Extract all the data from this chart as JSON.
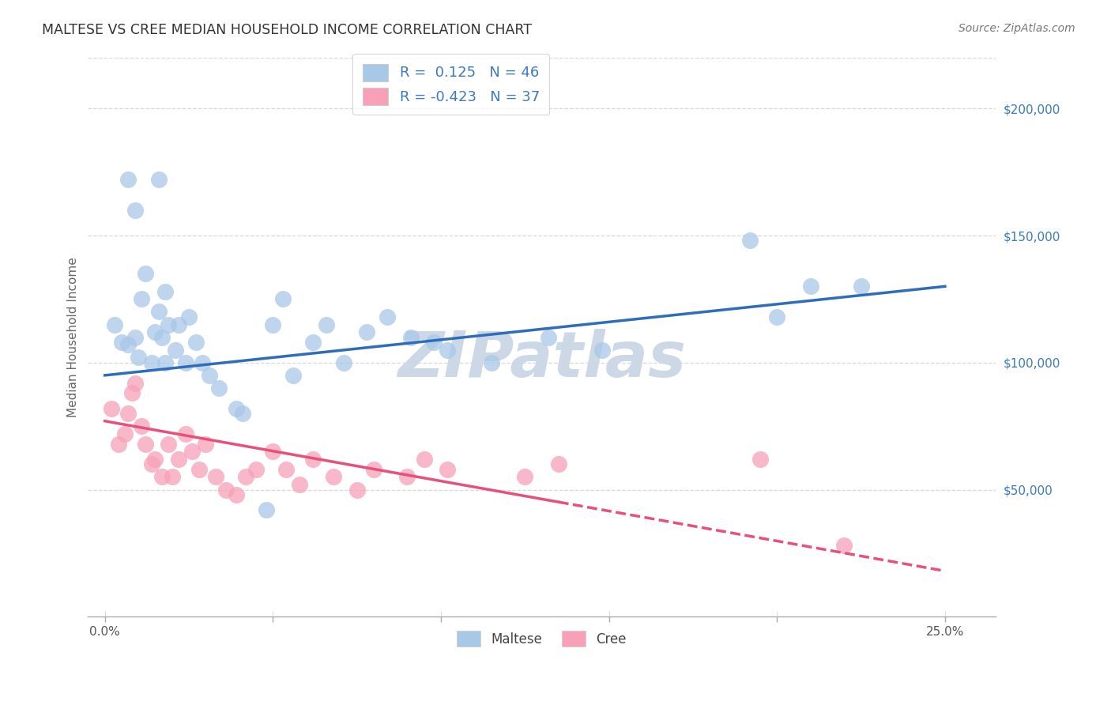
{
  "title": "MALTESE VS CREE MEDIAN HOUSEHOLD INCOME CORRELATION CHART",
  "source": "Source: ZipAtlas.com",
  "ylabel": "Median Household Income",
  "ytick_vals": [
    50000,
    100000,
    150000,
    200000
  ],
  "ytick_labels": [
    "$50,000",
    "$100,000",
    "$150,000",
    "$200,000"
  ],
  "xtick_vals": [
    0,
    5,
    10,
    15,
    20,
    25
  ],
  "xtick_labels": [
    "0.0%",
    "",
    "",
    "",
    "",
    "25.0%"
  ],
  "xlim": [
    -0.5,
    26.5
  ],
  "ylim": [
    0,
    220000
  ],
  "maltese_R": 0.125,
  "maltese_N": 46,
  "cree_R": -0.423,
  "cree_N": 37,
  "maltese_dot_color": "#a8c8e8",
  "maltese_line_color": "#2e6dba",
  "cree_dot_color": "#f8a0b8",
  "cree_line_color": "#e8507a",
  "background": "#ffffff",
  "grid_color": "#d8d8d8",
  "maltese_x": [
    0.7,
    1.6,
    0.9,
    1.8,
    0.3,
    0.5,
    0.7,
    0.9,
    1.0,
    1.1,
    1.2,
    1.4,
    1.5,
    1.6,
    1.7,
    1.8,
    1.9,
    2.1,
    2.2,
    2.4,
    2.5,
    2.7,
    2.9,
    3.1,
    3.4,
    3.9,
    4.1,
    5.0,
    5.3,
    5.6,
    6.2,
    6.6,
    7.1,
    7.8,
    8.4,
    9.1,
    9.8,
    10.2,
    4.8,
    11.5,
    13.2,
    14.8,
    19.2,
    20.0,
    21.0,
    22.5
  ],
  "maltese_y": [
    172000,
    172000,
    160000,
    128000,
    115000,
    108000,
    107000,
    110000,
    102000,
    125000,
    135000,
    100000,
    112000,
    120000,
    110000,
    100000,
    115000,
    105000,
    115000,
    100000,
    118000,
    108000,
    100000,
    95000,
    90000,
    82000,
    80000,
    115000,
    125000,
    95000,
    108000,
    115000,
    100000,
    112000,
    118000,
    110000,
    108000,
    105000,
    42000,
    100000,
    110000,
    105000,
    148000,
    118000,
    130000,
    130000
  ],
  "cree_x": [
    0.2,
    0.4,
    0.6,
    0.7,
    0.8,
    0.9,
    1.1,
    1.2,
    1.4,
    1.5,
    1.7,
    1.9,
    2.0,
    2.2,
    2.4,
    2.6,
    2.8,
    3.0,
    3.3,
    3.6,
    3.9,
    4.2,
    4.5,
    5.0,
    5.4,
    5.8,
    6.2,
    6.8,
    7.5,
    8.0,
    9.0,
    9.5,
    10.2,
    12.5,
    19.5,
    22.0,
    13.5
  ],
  "cree_y": [
    82000,
    68000,
    72000,
    80000,
    88000,
    92000,
    75000,
    68000,
    60000,
    62000,
    55000,
    68000,
    55000,
    62000,
    72000,
    65000,
    58000,
    68000,
    55000,
    50000,
    48000,
    55000,
    58000,
    65000,
    58000,
    52000,
    62000,
    55000,
    50000,
    58000,
    55000,
    62000,
    58000,
    55000,
    62000,
    28000,
    60000
  ],
  "maltese_line_x0": 0,
  "maltese_line_x1": 25,
  "maltese_line_y0": 95000,
  "maltese_line_y1": 130000,
  "cree_line_x0": 0,
  "cree_line_x1": 25,
  "cree_line_y0": 77000,
  "cree_line_y1": 18000,
  "cree_solid_end_x": 13.5
}
